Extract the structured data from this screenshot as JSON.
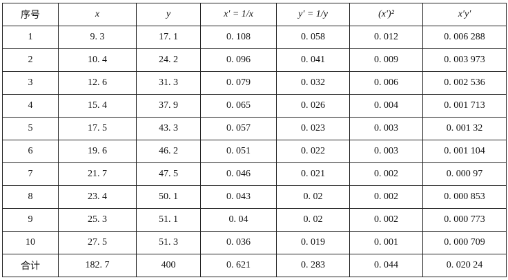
{
  "table": {
    "header": [
      "序号",
      "x",
      "y",
      "x′ = 1/x",
      "y′ = 1/y",
      "(x′)²",
      "x′y′"
    ],
    "rows": [
      [
        "1",
        "9. 3",
        "17. 1",
        "0. 108",
        "0. 058",
        "0. 012",
        "0. 006 288"
      ],
      [
        "2",
        "10. 4",
        "24. 2",
        "0. 096",
        "0. 041",
        "0. 009",
        "0. 003 973"
      ],
      [
        "3",
        "12. 6",
        "31. 3",
        "0. 079",
        "0. 032",
        "0. 006",
        "0. 002 536"
      ],
      [
        "4",
        "15. 4",
        "37. 9",
        "0. 065",
        "0. 026",
        "0. 004",
        "0. 001 713"
      ],
      [
        "5",
        "17. 5",
        "43. 3",
        "0. 057",
        "0. 023",
        "0. 003",
        "0. 001 32"
      ],
      [
        "6",
        "19. 6",
        "46. 2",
        "0. 051",
        "0. 022",
        "0. 003",
        "0. 001 104"
      ],
      [
        "7",
        "21. 7",
        "47. 5",
        "0. 046",
        "0. 021",
        "0. 002",
        "0. 000 97"
      ],
      [
        "8",
        "23. 4",
        "50. 1",
        "0. 043",
        "0. 02",
        "0. 002",
        "0. 000 853"
      ],
      [
        "9",
        "25. 3",
        "51. 1",
        "0. 04",
        "0. 02",
        "0. 002",
        "0. 000 773"
      ],
      [
        "10",
        "27. 5",
        "51. 3",
        "0. 036",
        "0. 019",
        "0. 001",
        "0. 000 709"
      ],
      [
        "合计",
        "182. 7",
        "400",
        "0. 621",
        "0. 283",
        "0. 044",
        "0. 020 24"
      ]
    ]
  }
}
